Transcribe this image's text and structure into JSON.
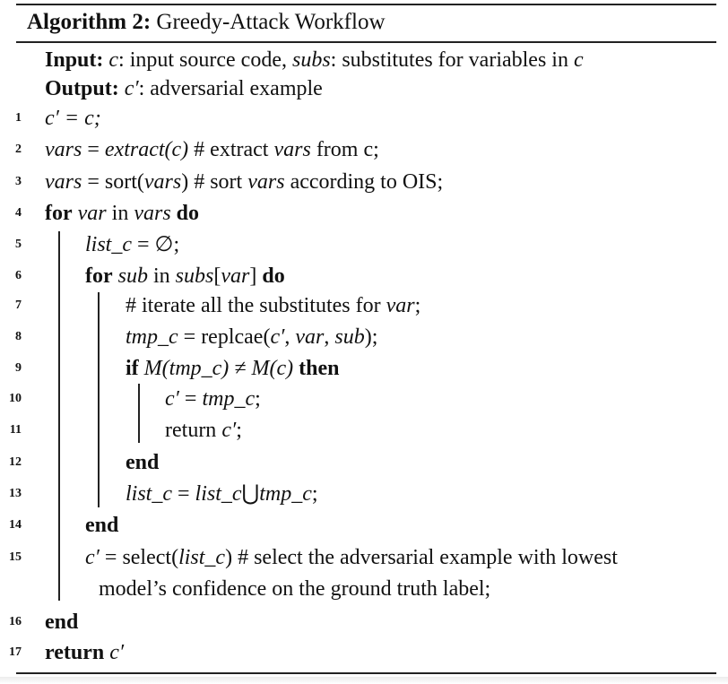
{
  "algorithm": {
    "caption_label": "Algorithm 2:",
    "caption_title": "Greedy-Attack Workflow",
    "input": {
      "label": "Input:",
      "var1": "c",
      "desc1": ": input source code, ",
      "var2": "subs",
      "desc2": ": substitutes for variables in ",
      "var3": "c"
    },
    "output": {
      "label": "Output:",
      "var": "c′",
      "desc": ": adversarial example"
    },
    "line_numbers": [
      "1",
      "2",
      "3",
      "4",
      "5",
      "6",
      "7",
      "8",
      "9",
      "10",
      "11",
      "12",
      "13",
      "14",
      "15",
      "",
      "16",
      "17"
    ],
    "lines": {
      "l1": {
        "lhs": "c′",
        "rest": " = c;"
      },
      "l2": {
        "v": "vars",
        "eq": " = ",
        "fn": "extract",
        "args": "(c)",
        "comment": " # extract ",
        "cv": "vars",
        "tail": " from c;"
      },
      "l3": {
        "v": "vars",
        "eq": " = sort(",
        "arg": "vars",
        "close": ")",
        "comment": " # sort ",
        "cv": "vars",
        "tail": " according to OIS;"
      },
      "l4": {
        "kw1": "for",
        "v1": "var",
        "mid": " in ",
        "v2": "vars",
        "kw2": "do"
      },
      "l5": {
        "v": "list_c",
        "rest": " = ∅;"
      },
      "l6": {
        "kw1": "for",
        "v1": "sub",
        "mid": " in ",
        "v2": "subs",
        "br": "[",
        "v3": "var",
        "br2": "]",
        "kw2": "do"
      },
      "l7": {
        "text": "# iterate all the substitutes for ",
        "v": "var",
        "tail": ";"
      },
      "l8": {
        "v": "tmp_c",
        "mid": " = replcae(",
        "a1": "c′",
        "sep1": ", ",
        "a2": "var",
        "sep2": ", ",
        "a3": "sub",
        "tail": ");"
      },
      "l9": {
        "kw1": "if",
        "cond": "M(tmp_c) ≠ M(c)",
        "kw2": "then"
      },
      "l10": {
        "lhs": "c′",
        "eq": " = ",
        "rhs": "tmp_c",
        "tail": ";"
      },
      "l11": {
        "text": "return ",
        "v": "c′",
        "tail": ";"
      },
      "l12": {
        "kw": "end"
      },
      "l13": {
        "v1": "list_c",
        "eq": " = ",
        "v2": "list_c",
        "op": "⋃",
        "v3": "tmp_c",
        "tail": ";"
      },
      "l14": {
        "kw": "end"
      },
      "l15": {
        "lhs": "c′",
        "mid": " = select(",
        "arg": "list_c",
        "tail": ") # select the adversarial example with lowest"
      },
      "l15b": {
        "text": "model’s confidence on the ground truth label;"
      },
      "l16": {
        "kw": "end"
      },
      "l17": {
        "kw": "return",
        "v": "c′"
      }
    }
  }
}
